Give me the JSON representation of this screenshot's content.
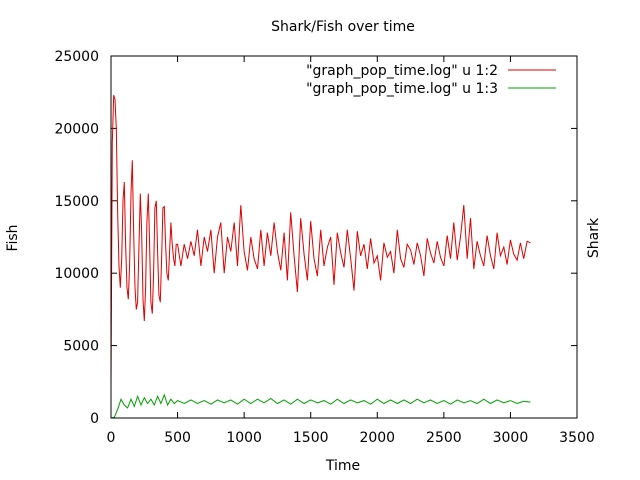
{
  "chart_data": {
    "type": "line",
    "title": "Shark/Fish over time",
    "xlabel": "Time",
    "ylabel": "Fish",
    "y2label": "Shark",
    "xlim": [
      0,
      3500
    ],
    "ylim": [
      0,
      25000
    ],
    "xticks": [
      0,
      500,
      1000,
      1500,
      2000,
      2500,
      3000,
      3500
    ],
    "yticks": [
      0,
      5000,
      10000,
      15000,
      20000,
      25000
    ],
    "legend_position": "top-right",
    "grid": false,
    "series": [
      {
        "name": "\"graph_pop_time.log\" u 1:2",
        "color": "#e00000",
        "x": [
          0,
          10,
          20,
          30,
          40,
          50,
          60,
          70,
          80,
          90,
          100,
          110,
          120,
          130,
          140,
          150,
          160,
          170,
          180,
          190,
          200,
          210,
          220,
          230,
          240,
          250,
          260,
          270,
          280,
          290,
          300,
          310,
          320,
          330,
          340,
          350,
          360,
          370,
          380,
          390,
          400,
          410,
          420,
          430,
          440,
          450,
          460,
          470,
          480,
          490,
          500,
          525,
          550,
          575,
          600,
          625,
          650,
          675,
          700,
          725,
          750,
          775,
          800,
          825,
          850,
          875,
          900,
          925,
          950,
          975,
          1000,
          1025,
          1050,
          1075,
          1100,
          1125,
          1150,
          1175,
          1200,
          1225,
          1250,
          1275,
          1300,
          1325,
          1350,
          1375,
          1400,
          1425,
          1450,
          1475,
          1500,
          1525,
          1550,
          1575,
          1600,
          1625,
          1650,
          1675,
          1700,
          1725,
          1750,
          1775,
          1800,
          1825,
          1850,
          1875,
          1900,
          1925,
          1950,
          1975,
          2000,
          2025,
          2050,
          2075,
          2100,
          2125,
          2150,
          2175,
          2200,
          2225,
          2250,
          2275,
          2300,
          2325,
          2350,
          2375,
          2400,
          2425,
          2450,
          2475,
          2500,
          2525,
          2550,
          2575,
          2600,
          2625,
          2650,
          2675,
          2700,
          2725,
          2750,
          2775,
          2800,
          2825,
          2850,
          2875,
          2900,
          2925,
          2950,
          2975,
          3000,
          3025,
          3050,
          3075,
          3100,
          3125,
          3150
        ],
        "y": [
          2400,
          19000,
          22300,
          22000,
          20000,
          14000,
          10500,
          9000,
          11000,
          15000,
          16300,
          12000,
          9000,
          8200,
          10500,
          15500,
          17800,
          13000,
          9000,
          7500,
          8000,
          12000,
          15500,
          13000,
          8200,
          6700,
          9000,
          13500,
          15500,
          12000,
          8000,
          7200,
          10000,
          14500,
          15000,
          11500,
          8500,
          8000,
          11000,
          14500,
          14600,
          12000,
          10000,
          9500,
          11500,
          13500,
          12000,
          11000,
          10500,
          12000,
          12000,
          10500,
          12000,
          11000,
          12200,
          11200,
          13000,
          10500,
          12500,
          11500,
          13000,
          10000,
          12500,
          13500,
          10000,
          12500,
          11500,
          13500,
          10500,
          14700,
          11500,
          10200,
          12500,
          11000,
          10300,
          13000,
          10500,
          12800,
          11200,
          13500,
          11500,
          10200,
          12800,
          9500,
          14200,
          11200,
          8700,
          13800,
          11300,
          9500,
          13600,
          11000,
          9800,
          13000,
          10500,
          11800,
          12500,
          9200,
          12800,
          11400,
          10400,
          13000,
          11000,
          8800,
          12900,
          11200,
          12000,
          10300,
          12400,
          10700,
          11200,
          9500,
          12100,
          11100,
          11500,
          10000,
          13000,
          11000,
          10400,
          12000,
          11600,
          10600,
          12100,
          11200,
          9800,
          12400,
          11400,
          10700,
          12200,
          11100,
          10500,
          12600,
          11000,
          13500,
          10900,
          12500,
          14700,
          11000,
          13800,
          10300,
          12200,
          11200,
          10500,
          12600,
          11200,
          10300,
          12800,
          11200,
          11800,
          10600,
          12300,
          11300,
          10900,
          12100,
          11000,
          12200,
          12100
        ]
      },
      {
        "name": "\"graph_pop_time.log\" u 1:3",
        "color": "#00a000",
        "x": [
          0,
          25,
          50,
          75,
          100,
          125,
          150,
          175,
          200,
          225,
          250,
          275,
          300,
          325,
          350,
          375,
          400,
          425,
          450,
          475,
          500,
          550,
          600,
          650,
          700,
          750,
          800,
          850,
          900,
          950,
          1000,
          1050,
          1100,
          1150,
          1200,
          1250,
          1300,
          1350,
          1400,
          1450,
          1500,
          1550,
          1600,
          1650,
          1700,
          1750,
          1800,
          1850,
          1900,
          1950,
          2000,
          2050,
          2100,
          2150,
          2200,
          2250,
          2300,
          2350,
          2400,
          2450,
          2500,
          2550,
          2600,
          2650,
          2700,
          2750,
          2800,
          2850,
          2900,
          2950,
          3000,
          3050,
          3100,
          3150
        ],
        "y": [
          0,
          50,
          600,
          1300,
          900,
          700,
          1300,
          800,
          1500,
          900,
          1400,
          1000,
          1300,
          900,
          1500,
          1000,
          1600,
          900,
          1300,
          1000,
          1200,
          1000,
          1250,
          1000,
          1200,
          950,
          1250,
          1050,
          1250,
          950,
          1300,
          1000,
          1300,
          1050,
          1350,
          1000,
          1250,
          950,
          1300,
          1000,
          1250,
          1050,
          1200,
          950,
          1300,
          1000,
          1250,
          1050,
          1200,
          950,
          1300,
          1000,
          1250,
          1000,
          1250,
          1000,
          1300,
          1050,
          1250,
          1000,
          1200,
          950,
          1250,
          1050,
          1200,
          1000,
          1300,
          1000,
          1250,
          1050,
          1200,
          1000,
          1150,
          1100
        ]
      }
    ]
  }
}
